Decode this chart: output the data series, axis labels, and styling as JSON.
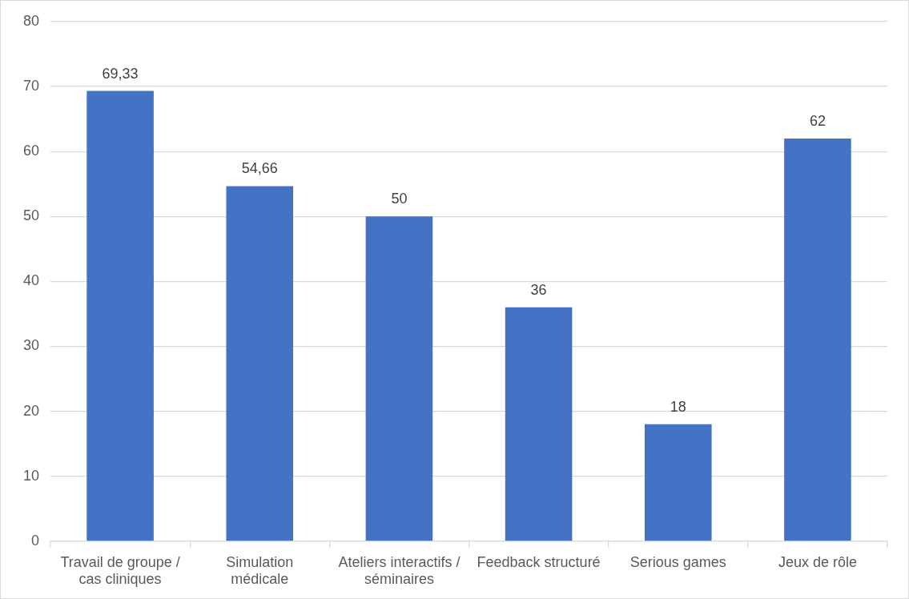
{
  "chart_data": {
    "type": "bar",
    "categories": [
      "Travail de groupe / cas cliniques",
      "Simulation médicale",
      "Ateliers interactifs / séminaires",
      "Feedback structuré",
      "Serious games",
      "Jeux de rôle"
    ],
    "values": [
      69.33,
      54.66,
      50,
      36,
      18,
      62
    ],
    "value_labels": [
      "69,33",
      "54,66",
      "50",
      "36",
      "18",
      "62"
    ],
    "color": "#4472c4",
    "ylim": [
      0,
      80
    ],
    "yticks": [
      0,
      10,
      20,
      30,
      40,
      50,
      60,
      70,
      80
    ],
    "grid": "y"
  }
}
